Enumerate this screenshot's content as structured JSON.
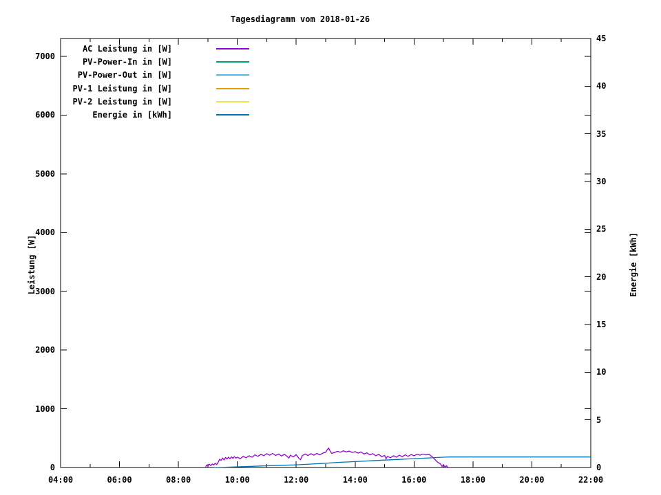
{
  "title": "Tagesdiagramm vom 2018-01-26",
  "axes": {
    "left_label": "Leistung [W]",
    "right_label": "Energie [kWh]",
    "x_tick_labels": [
      "04:00",
      "06:00",
      "08:00",
      "10:00",
      "12:00",
      "14:00",
      "16:00",
      "18:00",
      "20:00",
      "22:00"
    ],
    "y1_tick_labels": [
      "0",
      "1000",
      "2000",
      "3000",
      "4000",
      "5000",
      "6000",
      "7000"
    ],
    "y2_tick_labels": [
      "0",
      "5",
      "10",
      "15",
      "20",
      "25",
      "30",
      "35",
      "40",
      "45"
    ]
  },
  "legend": [
    {
      "label": "AC Leistung in [W]",
      "color": "#9400d3"
    },
    {
      "label": "PV-Power-In in [W]",
      "color": "#009e73"
    },
    {
      "label": "PV-Power-Out in [W]",
      "color": "#56b4e9"
    },
    {
      "label": "PV-1 Leistung in [W]",
      "color": "#e69f00"
    },
    {
      "label": "PV-2 Leistung in [W]",
      "color": "#f0e442"
    },
    {
      "label": "Energie in [kWh]",
      "color": "#0072b2"
    }
  ],
  "chart_data": {
    "type": "line",
    "title": "Tagesdiagramm vom 2018-01-26",
    "xlabel": "",
    "x_axis": {
      "unit": "time_hours",
      "range": [
        4,
        22
      ],
      "major_tick_hours": 2,
      "minor_tick_hours": 1,
      "tick_labels": [
        "04:00",
        "06:00",
        "08:00",
        "10:00",
        "12:00",
        "14:00",
        "16:00",
        "18:00",
        "20:00",
        "22:00"
      ]
    },
    "y1_axis": {
      "label": "Leistung [W]",
      "range": [
        0,
        7302
      ],
      "tick_step": 1000,
      "max_tick": 7000
    },
    "y2_axis": {
      "label": "Energie [kWh]",
      "range": [
        0,
        45
      ],
      "tick_step": 5
    },
    "grid": false,
    "legend_position": "top-left-inside",
    "series": [
      {
        "name": "AC Leistung in [W]",
        "color": "#9400d3",
        "axis": "y1",
        "points": [
          [
            8.92,
            0
          ],
          [
            8.95,
            40
          ],
          [
            9.0,
            30
          ],
          [
            9.05,
            55
          ],
          [
            9.1,
            35
          ],
          [
            9.15,
            60
          ],
          [
            9.2,
            45
          ],
          [
            9.25,
            70
          ],
          [
            9.3,
            50
          ],
          [
            9.35,
            90
          ],
          [
            9.4,
            140
          ],
          [
            9.45,
            120
          ],
          [
            9.5,
            160
          ],
          [
            9.55,
            130
          ],
          [
            9.6,
            170
          ],
          [
            9.65,
            145
          ],
          [
            9.7,
            175
          ],
          [
            9.75,
            150
          ],
          [
            9.8,
            180
          ],
          [
            9.85,
            155
          ],
          [
            9.9,
            185
          ],
          [
            9.95,
            160
          ],
          [
            10.0,
            175
          ],
          [
            10.1,
            150
          ],
          [
            10.2,
            190
          ],
          [
            10.3,
            165
          ],
          [
            10.4,
            200
          ],
          [
            10.5,
            175
          ],
          [
            10.6,
            215
          ],
          [
            10.7,
            190
          ],
          [
            10.8,
            225
          ],
          [
            10.9,
            200
          ],
          [
            11.0,
            235
          ],
          [
            11.1,
            210
          ],
          [
            11.2,
            240
          ],
          [
            11.3,
            205
          ],
          [
            11.4,
            230
          ],
          [
            11.5,
            195
          ],
          [
            11.6,
            225
          ],
          [
            11.7,
            185
          ],
          [
            11.75,
            160
          ],
          [
            11.8,
            210
          ],
          [
            11.9,
            180
          ],
          [
            12.0,
            220
          ],
          [
            12.1,
            150
          ],
          [
            12.15,
            135
          ],
          [
            12.2,
            200
          ],
          [
            12.3,
            230
          ],
          [
            12.4,
            205
          ],
          [
            12.5,
            235
          ],
          [
            12.6,
            210
          ],
          [
            12.7,
            240
          ],
          [
            12.8,
            215
          ],
          [
            12.9,
            245
          ],
          [
            13.0,
            260
          ],
          [
            13.05,
            300
          ],
          [
            13.1,
            330
          ],
          [
            13.15,
            280
          ],
          [
            13.2,
            240
          ],
          [
            13.3,
            255
          ],
          [
            13.4,
            275
          ],
          [
            13.5,
            260
          ],
          [
            13.6,
            285
          ],
          [
            13.7,
            265
          ],
          [
            13.8,
            280
          ],
          [
            13.9,
            255
          ],
          [
            14.0,
            270
          ],
          [
            14.1,
            245
          ],
          [
            14.2,
            265
          ],
          [
            14.3,
            230
          ],
          [
            14.4,
            250
          ],
          [
            14.5,
            215
          ],
          [
            14.6,
            235
          ],
          [
            14.7,
            200
          ],
          [
            14.8,
            225
          ],
          [
            14.9,
            185
          ],
          [
            15.0,
            205
          ],
          [
            15.05,
            150
          ],
          [
            15.1,
            190
          ],
          [
            15.2,
            165
          ],
          [
            15.3,
            200
          ],
          [
            15.4,
            175
          ],
          [
            15.5,
            210
          ],
          [
            15.6,
            185
          ],
          [
            15.7,
            215
          ],
          [
            15.8,
            190
          ],
          [
            15.9,
            220
          ],
          [
            16.0,
            200
          ],
          [
            16.1,
            225
          ],
          [
            16.2,
            210
          ],
          [
            16.3,
            230
          ],
          [
            16.4,
            215
          ],
          [
            16.5,
            225
          ],
          [
            16.6,
            190
          ],
          [
            16.7,
            140
          ],
          [
            16.8,
            90
          ],
          [
            16.9,
            60
          ],
          [
            16.95,
            20
          ],
          [
            17.0,
            45
          ],
          [
            17.05,
            10
          ],
          [
            17.1,
            30
          ],
          [
            17.15,
            5
          ],
          [
            17.2,
            0
          ]
        ]
      },
      {
        "name": "PV-Power-In in [W]",
        "color": "#009e73",
        "axis": "y1",
        "points": []
      },
      {
        "name": "PV-Power-Out in [W]",
        "color": "#56b4e9",
        "axis": "y1",
        "points": []
      },
      {
        "name": "PV-1 Leistung in [W]",
        "color": "#e69f00",
        "axis": "y1",
        "points": []
      },
      {
        "name": "PV-2 Leistung in [W]",
        "color": "#f0e442",
        "axis": "y1",
        "points": []
      },
      {
        "name": "Energie in [kWh]",
        "color": "#0072b2",
        "axis": "y2",
        "points": [
          [
            9.2,
            0
          ],
          [
            9.6,
            0.03
          ],
          [
            10.0,
            0.07
          ],
          [
            10.5,
            0.12
          ],
          [
            11.0,
            0.18
          ],
          [
            11.5,
            0.23
          ],
          [
            12.0,
            0.28
          ],
          [
            12.5,
            0.36
          ],
          [
            13.0,
            0.45
          ],
          [
            13.5,
            0.55
          ],
          [
            14.0,
            0.62
          ],
          [
            14.5,
            0.7
          ],
          [
            15.0,
            0.78
          ],
          [
            15.5,
            0.85
          ],
          [
            16.0,
            0.93
          ],
          [
            16.5,
            1.0
          ],
          [
            16.8,
            1.05
          ],
          [
            17.0,
            1.08
          ],
          [
            17.2,
            1.1
          ],
          [
            22.0,
            1.1
          ]
        ]
      }
    ]
  }
}
